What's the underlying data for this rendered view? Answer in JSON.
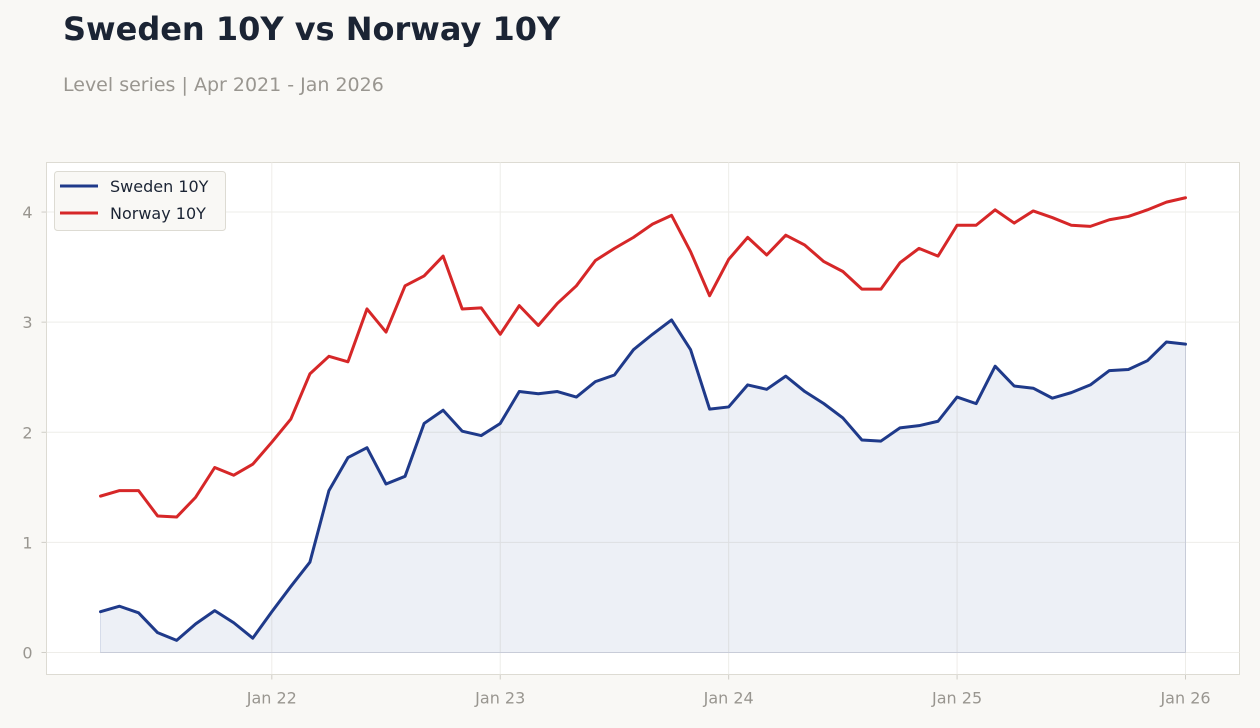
{
  "title": "Sweden 10Y vs Norway 10Y",
  "subtitle": "Level series | Apr 2021 - Jan 2026",
  "chart_data": {
    "type": "line",
    "x_start": "2021-04",
    "x_end": "2026-01",
    "x_ticks": [
      {
        "label": "Jan 22",
        "month": "2022-01"
      },
      {
        "label": "Jan 23",
        "month": "2023-01"
      },
      {
        "label": "Jan 24",
        "month": "2024-01"
      },
      {
        "label": "Jan 25",
        "month": "2025-01"
      },
      {
        "label": "Jan 26",
        "month": "2026-01"
      }
    ],
    "y_ticks": [
      0,
      1,
      2,
      3,
      4
    ],
    "ylim": [
      -0.2,
      4.45
    ],
    "grid": true,
    "legend_position": "top-left",
    "series": [
      {
        "name": "Sweden 10Y",
        "color": "#1f3a8a",
        "filled": true,
        "values": [
          0.37,
          0.42,
          0.36,
          0.18,
          0.11,
          0.26,
          0.38,
          0.27,
          0.13,
          0.37,
          0.6,
          0.82,
          1.47,
          1.77,
          1.86,
          1.53,
          1.6,
          2.08,
          2.2,
          2.01,
          1.97,
          2.08,
          2.37,
          2.35,
          2.37,
          2.32,
          2.46,
          2.52,
          2.75,
          2.89,
          3.02,
          2.75,
          2.21,
          2.23,
          2.43,
          2.39,
          2.51,
          2.37,
          2.26,
          2.13,
          1.93,
          1.92,
          2.04,
          2.06,
          2.1,
          2.32,
          2.26,
          2.6,
          2.42,
          2.4,
          2.31,
          2.36,
          2.43,
          2.56,
          2.57,
          2.65,
          2.82,
          2.8
        ]
      },
      {
        "name": "Norway 10Y",
        "color": "#d62728",
        "filled": false,
        "values": [
          1.42,
          1.47,
          1.47,
          1.24,
          1.23,
          1.41,
          1.68,
          1.61,
          1.71,
          1.91,
          2.12,
          2.53,
          2.69,
          2.64,
          3.12,
          2.91,
          3.33,
          3.42,
          3.6,
          3.12,
          3.13,
          2.89,
          3.15,
          2.97,
          3.17,
          3.33,
          3.56,
          3.67,
          3.77,
          3.89,
          3.97,
          3.64,
          3.24,
          3.57,
          3.77,
          3.61,
          3.79,
          3.7,
          3.55,
          3.46,
          3.3,
          3.3,
          3.54,
          3.67,
          3.6,
          3.88,
          3.88,
          4.02,
          3.9,
          4.01,
          3.95,
          3.88,
          3.87,
          3.93,
          3.96,
          4.02,
          4.09,
          4.13
        ]
      }
    ]
  }
}
